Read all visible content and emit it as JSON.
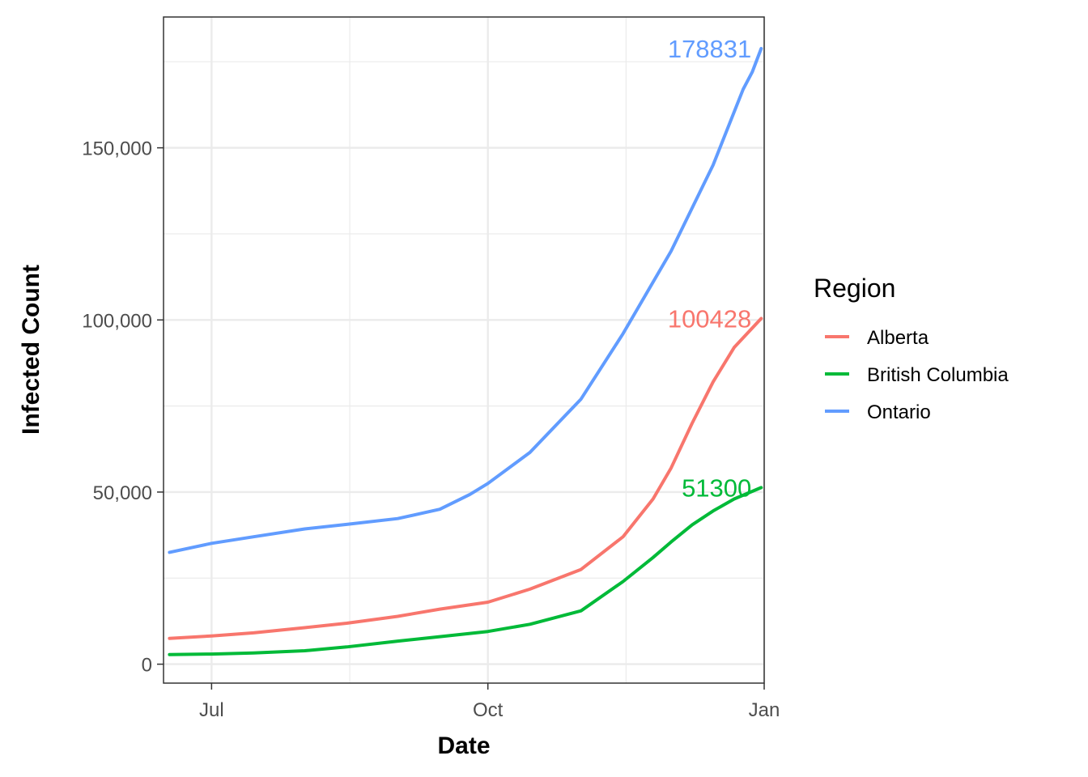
{
  "chart_data": {
    "type": "line",
    "title": "",
    "xlabel": "Date",
    "ylabel": "Infected Count",
    "x_range": [
      "2020-06-15",
      "2021-01-01"
    ],
    "ylim": [
      -5500,
      188000
    ],
    "x_ticks": [
      {
        "date": "2020-07-01",
        "label": "Jul"
      },
      {
        "date": "2020-10-01",
        "label": "Oct"
      },
      {
        "date": "2021-01-01",
        "label": "Jan"
      }
    ],
    "x_minor_ticks": [
      "2020-08-16",
      "2020-11-16"
    ],
    "y_ticks": [
      {
        "value": 0,
        "label": "0"
      },
      {
        "value": 50000,
        "label": "50,000"
      },
      {
        "value": 100000,
        "label": "100,000"
      },
      {
        "value": 150000,
        "label": "150,000"
      }
    ],
    "y_minor_ticks": [
      25000,
      75000,
      125000,
      175000
    ],
    "grid": true,
    "legend": {
      "title": "Region",
      "position": "right"
    },
    "series": [
      {
        "name": "Alberta",
        "color": "#F8766D",
        "end_label": "100428",
        "points": [
          [
            "2020-06-17",
            7500
          ],
          [
            "2020-07-01",
            8200
          ],
          [
            "2020-07-15",
            9100
          ],
          [
            "2020-08-01",
            10600
          ],
          [
            "2020-08-15",
            11900
          ],
          [
            "2020-09-01",
            13900
          ],
          [
            "2020-09-15",
            16000
          ],
          [
            "2020-10-01",
            18000
          ],
          [
            "2020-10-15",
            21800
          ],
          [
            "2020-11-01",
            27500
          ],
          [
            "2020-11-15",
            37000
          ],
          [
            "2020-11-25",
            48000
          ],
          [
            "2020-12-01",
            57000
          ],
          [
            "2020-12-08",
            70000
          ],
          [
            "2020-12-15",
            82000
          ],
          [
            "2020-12-22",
            92000
          ],
          [
            "2020-12-31",
            100428
          ]
        ]
      },
      {
        "name": "British Columbia",
        "color": "#00BA38",
        "end_label": "51300",
        "points": [
          [
            "2020-06-17",
            2800
          ],
          [
            "2020-07-01",
            2950
          ],
          [
            "2020-07-15",
            3250
          ],
          [
            "2020-08-01",
            3900
          ],
          [
            "2020-08-15",
            5000
          ],
          [
            "2020-09-01",
            6700
          ],
          [
            "2020-09-15",
            8000
          ],
          [
            "2020-10-01",
            9500
          ],
          [
            "2020-10-15",
            11600
          ],
          [
            "2020-11-01",
            15500
          ],
          [
            "2020-11-15",
            24000
          ],
          [
            "2020-11-25",
            31000
          ],
          [
            "2020-12-01",
            35500
          ],
          [
            "2020-12-08",
            40500
          ],
          [
            "2020-12-15",
            44500
          ],
          [
            "2020-12-22",
            48000
          ],
          [
            "2020-12-31",
            51300
          ]
        ]
      },
      {
        "name": "Ontario",
        "color": "#619CFF",
        "end_label": "178831",
        "points": [
          [
            "2020-06-17",
            32500
          ],
          [
            "2020-07-01",
            35100
          ],
          [
            "2020-07-15",
            37000
          ],
          [
            "2020-08-01",
            39300
          ],
          [
            "2020-08-15",
            40600
          ],
          [
            "2020-09-01",
            42300
          ],
          [
            "2020-09-15",
            45000
          ],
          [
            "2020-09-25",
            49300
          ],
          [
            "2020-10-01",
            52500
          ],
          [
            "2020-10-15",
            61500
          ],
          [
            "2020-11-01",
            77000
          ],
          [
            "2020-11-15",
            96000
          ],
          [
            "2020-12-01",
            120000
          ],
          [
            "2020-12-15",
            145000
          ],
          [
            "2020-12-25",
            167000
          ],
          [
            "2020-12-28",
            172000
          ],
          [
            "2020-12-31",
            178831
          ]
        ]
      }
    ]
  }
}
